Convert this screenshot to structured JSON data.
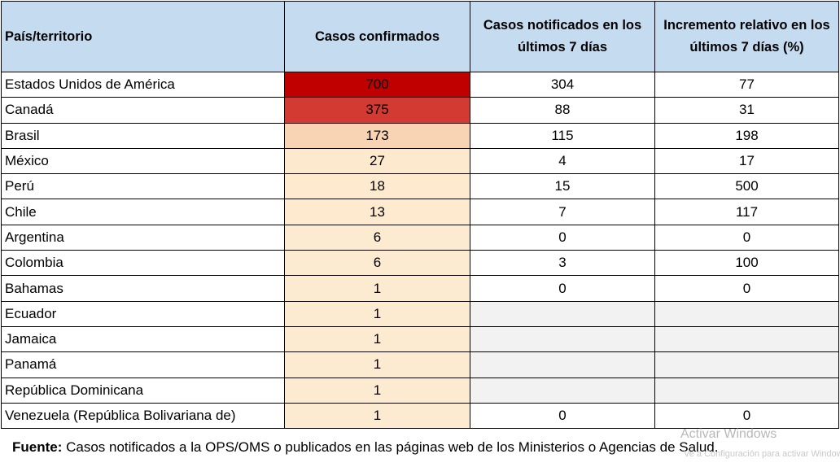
{
  "table": {
    "headers": {
      "country": "País/territorio",
      "confirmed": "Casos confirmados",
      "last7": "Casos notificados en los últimos 7 días",
      "increase": "Incremento relativo en los últimos 7 días (%)"
    },
    "rows": [
      {
        "country": "Estados Unidos de América",
        "confirmed": "700",
        "last7": "304",
        "increase": "77",
        "heat_color": "#c00000"
      },
      {
        "country": "Canadá",
        "confirmed": "375",
        "last7": "88",
        "increase": "31",
        "heat_color": "#d23a32"
      },
      {
        "country": "Brasil",
        "confirmed": "173",
        "last7": "115",
        "increase": "198",
        "heat_color": "#f8d4b4"
      },
      {
        "country": "México",
        "confirmed": "27",
        "last7": "4",
        "increase": "17",
        "heat_color": "#fde9cd"
      },
      {
        "country": "Perú",
        "confirmed": "18",
        "last7": "15",
        "increase": "500",
        "heat_color": "#fdeacf"
      },
      {
        "country": "Chile",
        "confirmed": "13",
        "last7": "7",
        "increase": "117",
        "heat_color": "#fdeacf"
      },
      {
        "country": "Argentina",
        "confirmed": "6",
        "last7": "0",
        "increase": "0",
        "heat_color": "#fdebd1"
      },
      {
        "country": "Colombia",
        "confirmed": "6",
        "last7": "3",
        "increase": "100",
        "heat_color": "#fdebd1"
      },
      {
        "country": "Bahamas",
        "confirmed": "1",
        "last7": "0",
        "increase": "0",
        "heat_color": "#fdebd1"
      },
      {
        "country": "Ecuador",
        "confirmed": "1",
        "last7": "",
        "increase": "",
        "heat_color": "#fdebd1"
      },
      {
        "country": "Jamaica",
        "confirmed": "1",
        "last7": "",
        "increase": "",
        "heat_color": "#fdebd1"
      },
      {
        "country": "Panamá",
        "confirmed": "1",
        "last7": "",
        "increase": "",
        "heat_color": "#fdebd1"
      },
      {
        "country": "República Dominicana",
        "confirmed": "1",
        "last7": "",
        "increase": "",
        "heat_color": "#fdebd1"
      },
      {
        "country": "Venezuela (República Bolivariana de)",
        "confirmed": "1",
        "last7": "0",
        "increase": "0",
        "heat_color": "#fdebd1"
      }
    ]
  },
  "footer": {
    "label": "Fuente:",
    "text": " Casos notificados a la OPS/OMS o publicados en las páginas web de los Ministerios o Agencias de Salud."
  },
  "watermark": {
    "title": "Activar Windows",
    "subtitle": "Ve a Configuración para activar Windows."
  },
  "colors": {
    "header_bg": "#c5dcf0",
    "empty_cell_bg": "#f2f2f2",
    "border": "#000000"
  }
}
